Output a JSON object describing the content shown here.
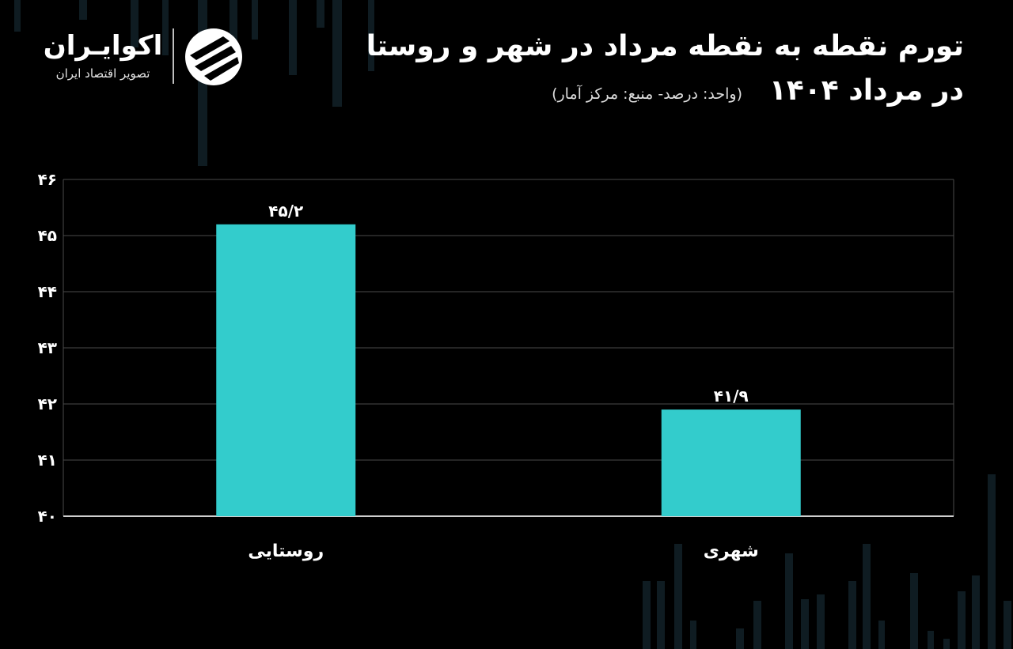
{
  "title_line1": "تورم نقطه به نقطه مرداد در شهر و روستا",
  "title_line2": "در مرداد ۱۴۰۴",
  "subtitle": "(واحد: درصد- منبع: مرکز آمار)",
  "brand": {
    "name": "اکوایـران",
    "tagline": "تصویر اقتصاد ایران"
  },
  "colors": {
    "background": "#000000",
    "bar": "#33cccc",
    "grid": "#4a4a4a",
    "text": "#ffffff"
  },
  "chart_data": {
    "type": "bar",
    "categories": [
      "روستایی",
      "شهری"
    ],
    "values": [
      45.2,
      41.9
    ],
    "value_labels": [
      "۴۵/۲",
      "۴۱/۹"
    ],
    "y_ticks": [
      "۴۰",
      "۴۱",
      "۴۲",
      "۴۳",
      "۴۴",
      "۴۵",
      "۴۶"
    ],
    "ylim": [
      40,
      46
    ],
    "grid": true,
    "title": "تورم نقطه به نقطه مرداد در شهر و روستا در مرداد ۱۴۰۴",
    "ylabel": "",
    "xlabel": ""
  }
}
